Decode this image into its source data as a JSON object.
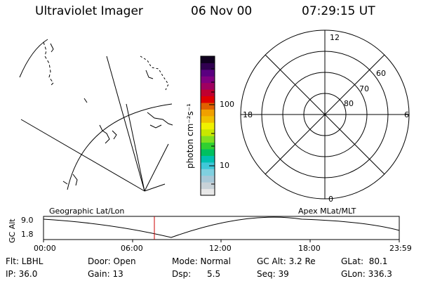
{
  "header": {
    "title": "Ultraviolet Imager",
    "date": "06 Nov 00",
    "time": "07:29:15 UT"
  },
  "colorbar": {
    "unit_label": "photon cm⁻²s⁻¹",
    "ticks": [
      "100",
      "10"
    ],
    "colors": [
      "#e8e8e8",
      "#c8d2d8",
      "#a8c8d8",
      "#80d0e0",
      "#40c8d8",
      "#00c0b0",
      "#00c060",
      "#30d030",
      "#80e020",
      "#c8e800",
      "#f0f000",
      "#f0c000",
      "#f0a000",
      "#e06000",
      "#e00000",
      "#c00030",
      "#a00060",
      "#800080",
      "#5a0080",
      "#300050",
      "#100020"
    ]
  },
  "left_panel": {
    "label": "Geographic Lat/Lon"
  },
  "polar_plot": {
    "label": "Apex MLat/MLT",
    "mlt_labels": [
      "12",
      "18",
      "6",
      "0"
    ],
    "lat_labels": [
      "60",
      "70",
      "80"
    ]
  },
  "altitude_strip": {
    "ylabel": "GC Alt",
    "yticks": [
      "9.0",
      "1.8"
    ],
    "xticks": [
      "00:00",
      "06:00",
      "12:00",
      "18:00",
      "23:59"
    ],
    "marker_color": "#cc0000"
  },
  "info": {
    "row1": [
      "Flt: LBHL",
      "Door: Open",
      "Mode: Normal",
      "GC Alt: 3.2 Re",
      "GLat:  80.1"
    ],
    "row2": [
      "IP: 36.0",
      "Gain: 13",
      "Dsp:      5.5",
      "Seq: 39",
      "GLon: 336.3"
    ]
  }
}
